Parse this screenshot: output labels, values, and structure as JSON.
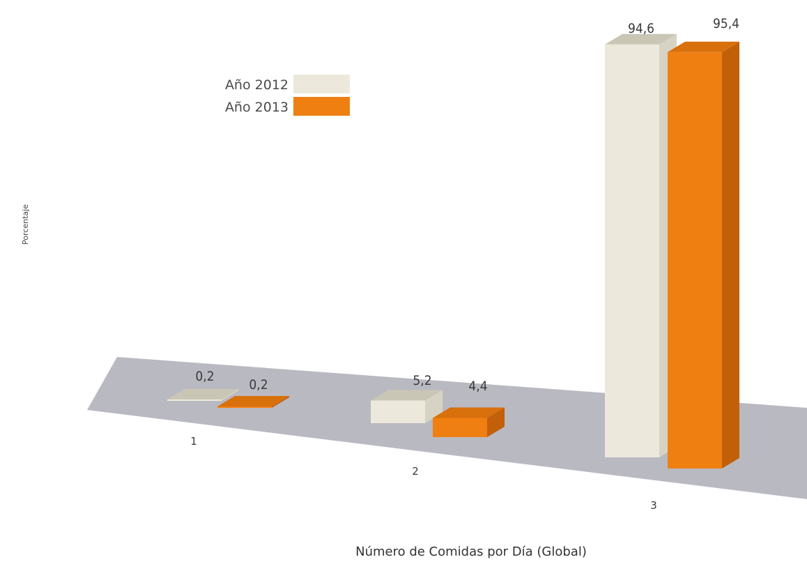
{
  "chart_data": {
    "type": "bar",
    "categories": [
      "1",
      "2",
      "3"
    ],
    "series": [
      {
        "name": "Año 2012",
        "values": [
          0.2,
          5.2,
          94.6
        ],
        "labels": [
          "0,2",
          "5,2",
          "94,6"
        ]
      },
      {
        "name": "Año 2013",
        "values": [
          0.2,
          4.4,
          95.4
        ],
        "labels": [
          "0,2",
          "4,4",
          "95,4"
        ]
      }
    ],
    "xlabel": "Número de Comidas por Día (Global)",
    "ylabel": "Porcentaje",
    "ylim": [
      0,
      100
    ],
    "grid": false,
    "legend_position": "top-left",
    "three_d": true,
    "colors": {
      "series_2012": "#ece9dc",
      "series_2013": "#f07f12",
      "floor": "#b9b9c1"
    }
  }
}
